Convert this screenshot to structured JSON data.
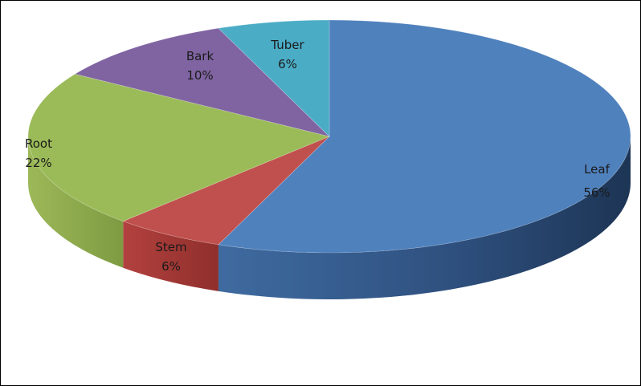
{
  "chart_data": {
    "type": "pie",
    "style": "3d",
    "title": "",
    "slices": [
      {
        "category": "Leaf",
        "value": 56,
        "value_label": "56%",
        "color": "#4F81BD"
      },
      {
        "category": "Stem",
        "value": 6,
        "value_label": "6%",
        "color": "#C0504D"
      },
      {
        "category": "Root",
        "value": 22,
        "value_label": "22%",
        "color": "#9BBB59"
      },
      {
        "category": "Bark",
        "value": 10,
        "value_label": "10%",
        "color": "#8064A2"
      },
      {
        "category": "Tuber",
        "value": 6,
        "value_label": "6%",
        "color": "#4BACC6"
      }
    ],
    "legend": "none",
    "data_labels": "category and percentage"
  }
}
